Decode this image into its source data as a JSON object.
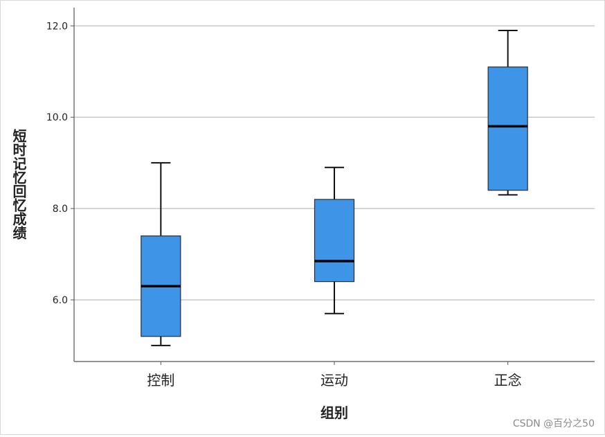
{
  "chart_data": {
    "type": "boxplot",
    "title": "",
    "xlabel": "组别",
    "ylabel": "短时记忆回忆成绩",
    "categories": [
      "控制",
      "运动",
      "正念"
    ],
    "boxes": [
      {
        "category": "控制",
        "min": 5.0,
        "q1": 5.2,
        "median": 6.3,
        "q3": 7.4,
        "max": 9.0
      },
      {
        "category": "运动",
        "min": 5.7,
        "q1": 6.4,
        "median": 6.85,
        "q3": 8.2,
        "max": 8.9
      },
      {
        "category": "正念",
        "min": 8.3,
        "q1": 8.4,
        "median": 9.8,
        "q3": 11.1,
        "max": 11.9
      }
    ],
    "yticks": [
      "6.0",
      "8.0",
      "10.0",
      "12.0"
    ],
    "ytick_values": [
      6,
      8,
      10,
      12
    ],
    "ylim": [
      4.65,
      12.4
    ],
    "grid": "horizontal",
    "colors": {
      "box_fill": "#3e95e8",
      "box_stroke": "#2b2b2b",
      "grid": "#c8c8c8",
      "axis": "#555555"
    }
  },
  "watermark": "CSDN @百分之50"
}
